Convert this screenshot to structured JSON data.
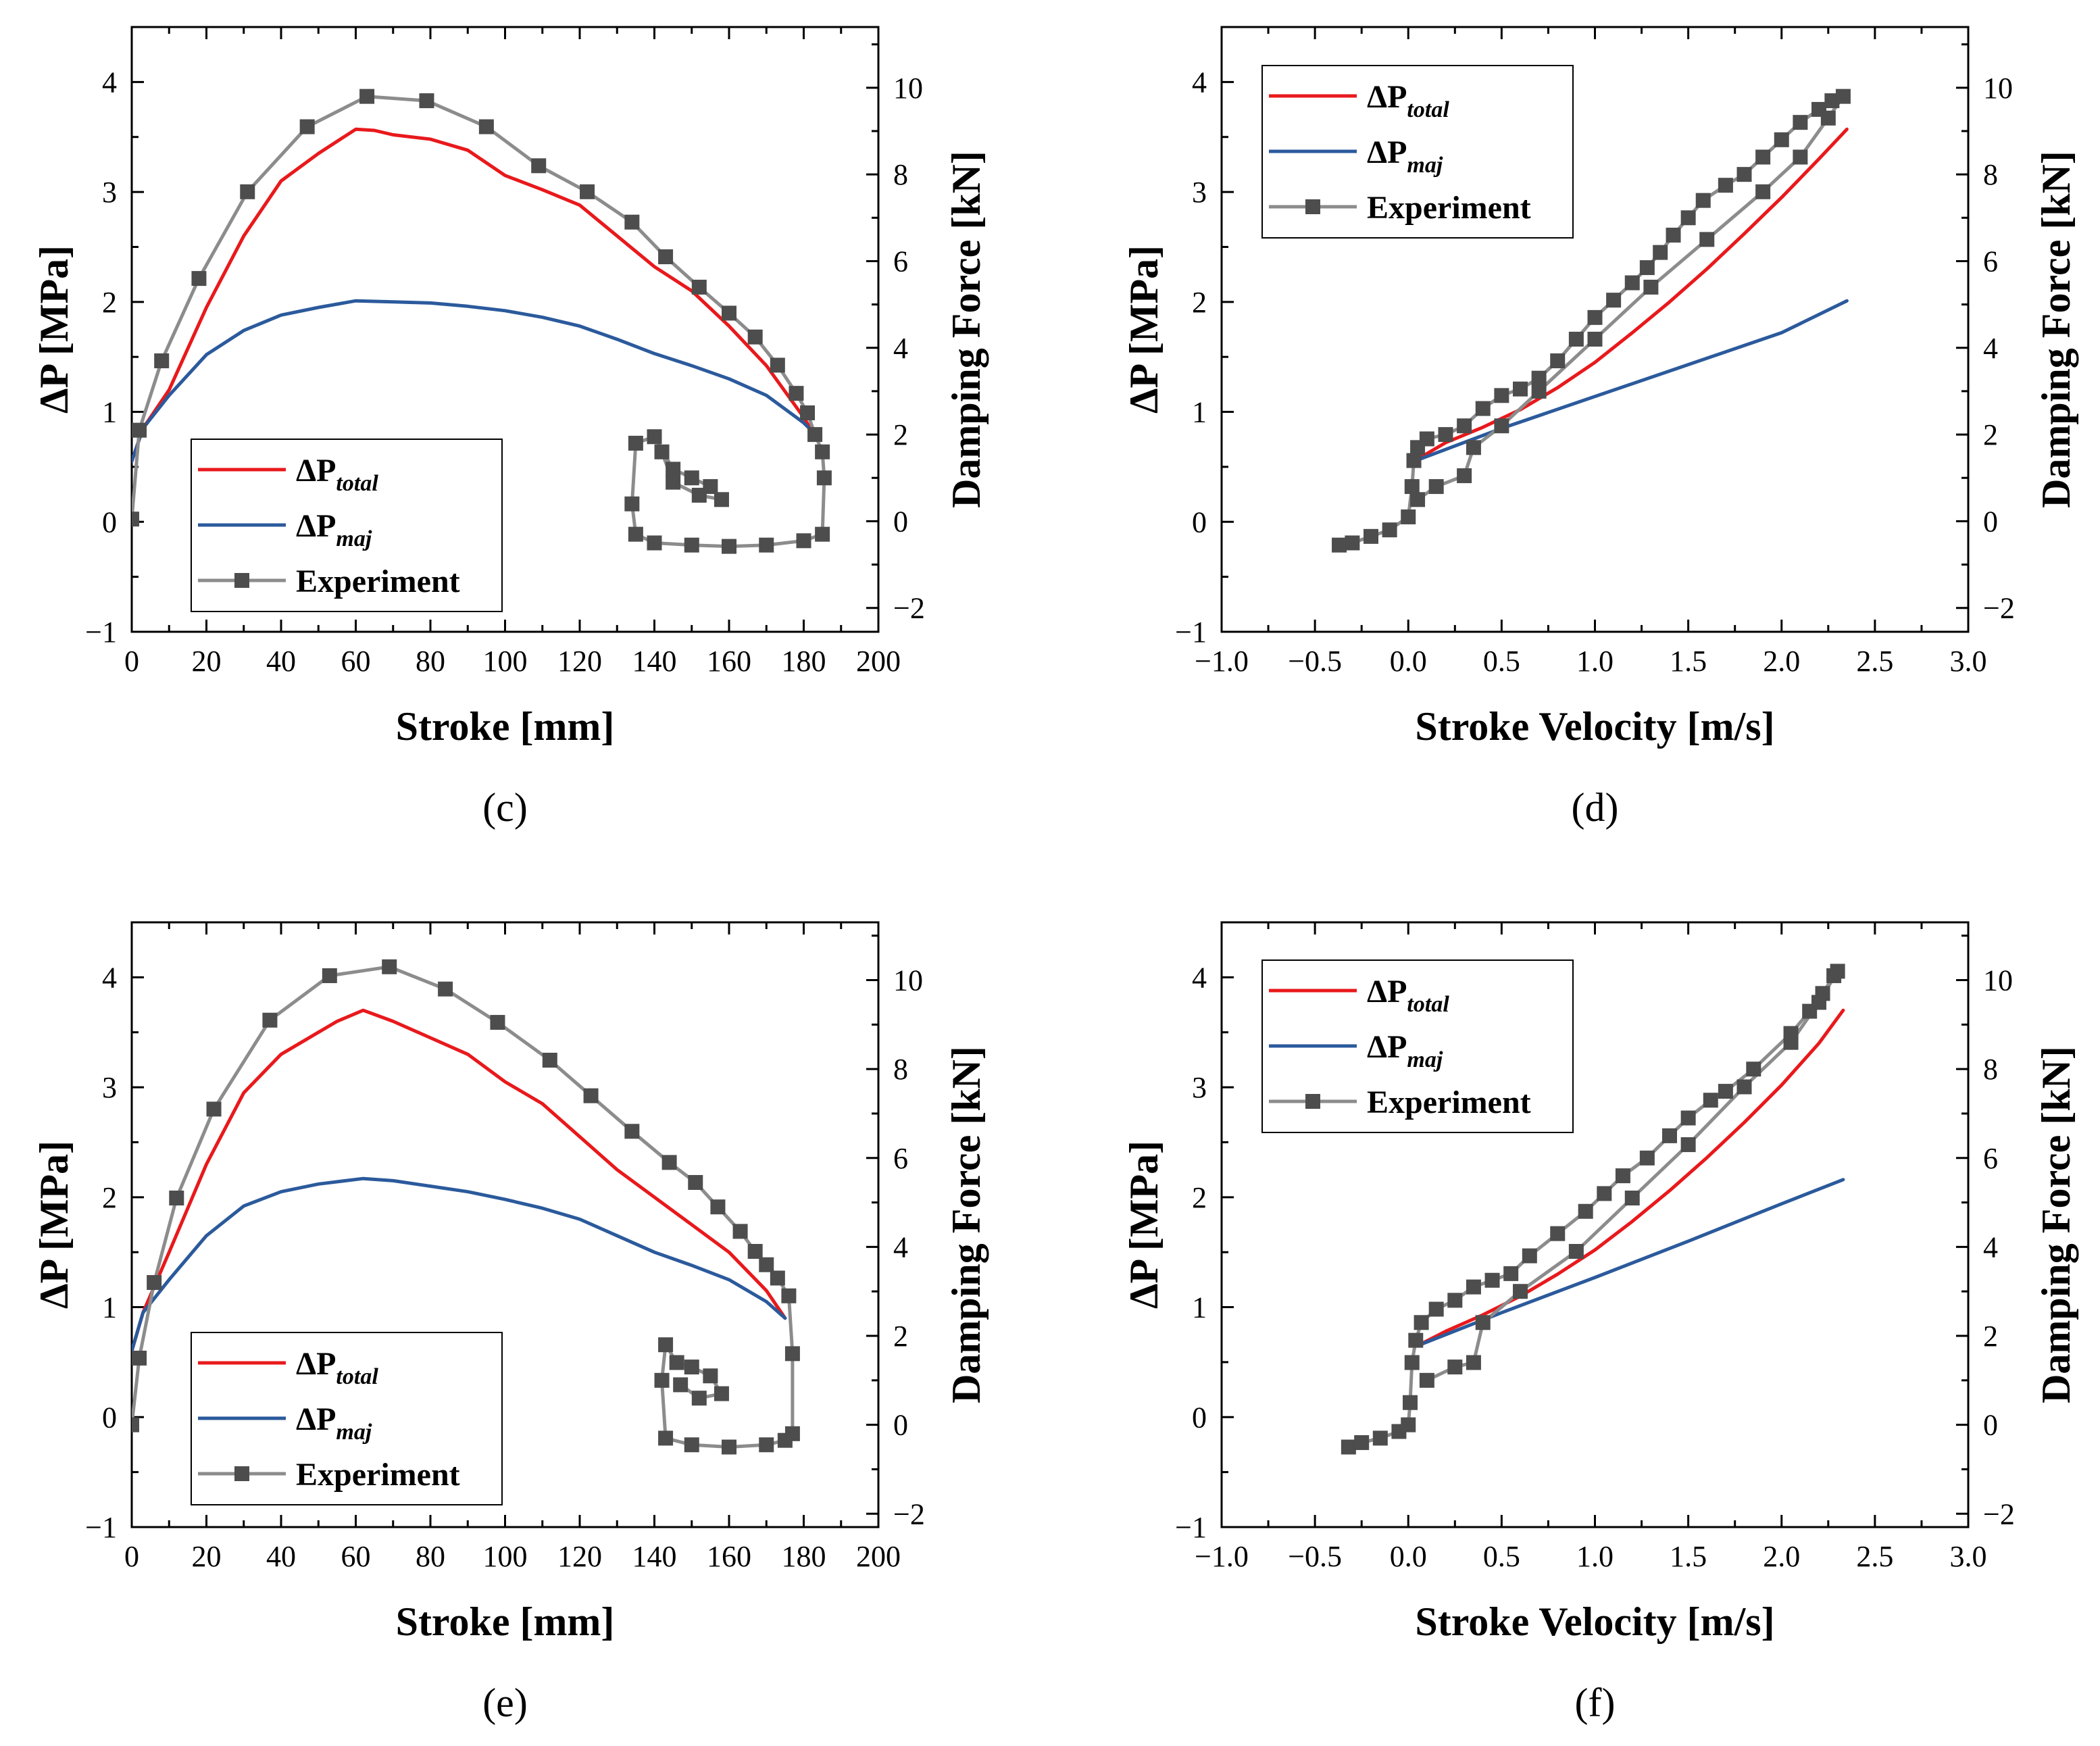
{
  "colors": {
    "total": "#e8191c",
    "maj": "#2b5a9c",
    "experiment_line": "#8c8c8c",
    "experiment_marker": "#4d4d4d"
  },
  "legend": {
    "total_main": "ΔP",
    "total_sub": "total",
    "maj_main": "ΔP",
    "maj_sub": "maj",
    "experiment": "Experiment"
  },
  "chart_data": [
    {
      "panel_label": "(c)",
      "type": "line",
      "xlabel": "Stroke [mm]",
      "ylabel": "ΔP [MPa]",
      "y2label": "Damping Force [kN]",
      "xlim": [
        0,
        200
      ],
      "ylim": [
        -1,
        4.5
      ],
      "y2lim": [
        -2.55,
        11.4
      ],
      "xticks": [
        0,
        20,
        40,
        60,
        80,
        100,
        120,
        140,
        160,
        180,
        200
      ],
      "yticks": [
        -1,
        0,
        1,
        2,
        3,
        4
      ],
      "y2ticks": [
        -2,
        0,
        2,
        4,
        6,
        8,
        10
      ],
      "legend_position": "lower-left",
      "series": [
        {
          "name": "ΔPtotal",
          "key": "total",
          "axis": "left",
          "x": [
            0,
            3,
            10,
            20,
            30,
            40,
            50,
            60,
            65,
            70,
            80,
            90,
            100,
            110,
            120,
            130,
            140,
            150,
            160,
            170,
            180,
            183
          ],
          "y": [
            0.55,
            0.85,
            1.2,
            1.95,
            2.6,
            3.1,
            3.35,
            3.57,
            3.56,
            3.52,
            3.48,
            3.38,
            3.15,
            3.02,
            2.88,
            2.6,
            2.32,
            2.1,
            1.78,
            1.42,
            0.95,
            0.78
          ]
        },
        {
          "name": "ΔPmaj",
          "key": "maj",
          "axis": "left",
          "x": [
            0,
            3,
            10,
            20,
            30,
            40,
            50,
            60,
            70,
            80,
            90,
            100,
            110,
            120,
            130,
            140,
            150,
            160,
            170,
            180,
            183
          ],
          "y": [
            0.55,
            0.85,
            1.15,
            1.52,
            1.74,
            1.88,
            1.95,
            2.01,
            2.0,
            1.99,
            1.96,
            1.92,
            1.86,
            1.78,
            1.66,
            1.53,
            1.42,
            1.3,
            1.15,
            0.9,
            0.8
          ]
        },
        {
          "name": "Experiment",
          "key": "experiment",
          "axis": "right",
          "x": [
            0,
            2,
            8,
            18,
            31,
            47,
            63,
            79,
            95,
            109,
            122,
            134,
            143,
            152,
            160,
            167,
            173,
            178,
            181,
            183,
            185,
            185.5,
            185,
            180,
            170,
            160,
            150,
            140,
            135,
            134,
            135,
            140,
            145,
            150,
            155,
            158,
            152,
            145,
            142
          ],
          "y": [
            0.05,
            2.1,
            3.7,
            5.6,
            7.6,
            9.1,
            9.8,
            9.7,
            9.1,
            8.2,
            7.6,
            6.9,
            6.1,
            5.4,
            4.8,
            4.25,
            3.6,
            2.95,
            2.5,
            2.0,
            1.6,
            1.0,
            -0.3,
            -0.45,
            -0.55,
            -0.58,
            -0.55,
            -0.5,
            -0.3,
            0.4,
            1.8,
            1.95,
            1.2,
            1.0,
            0.8,
            0.5,
            0.6,
            0.9,
            1.6
          ]
        }
      ]
    },
    {
      "panel_label": "(d)",
      "type": "line",
      "xlabel": "Stroke Velocity [m/s]",
      "ylabel": "ΔP [MPa]",
      "y2label": "Damping Force [kN]",
      "xlim": [
        -1.0,
        3.0
      ],
      "ylim": [
        -1,
        4.5
      ],
      "y2lim": [
        -2.55,
        11.4
      ],
      "xticks": [
        -1.0,
        -0.5,
        0.0,
        0.5,
        1.0,
        1.5,
        2.0,
        2.5,
        3.0
      ],
      "yticks": [
        -1,
        0,
        1,
        2,
        3,
        4
      ],
      "y2ticks": [
        -2,
        0,
        2,
        4,
        6,
        8,
        10
      ],
      "legend_position": "top-left",
      "series": [
        {
          "name": "ΔPtotal",
          "key": "total",
          "axis": "left",
          "x": [
            0.03,
            0.2,
            0.4,
            0.6,
            0.8,
            1.0,
            1.2,
            1.4,
            1.6,
            1.8,
            2.0,
            2.2,
            2.35
          ],
          "y": [
            0.55,
            0.72,
            0.86,
            1.02,
            1.22,
            1.45,
            1.72,
            2.0,
            2.3,
            2.62,
            2.95,
            3.3,
            3.57
          ]
        },
        {
          "name": "ΔPmaj",
          "key": "maj",
          "axis": "left",
          "x": [
            0.03,
            0.5,
            1.0,
            1.5,
            2.0,
            2.35
          ],
          "y": [
            0.55,
            0.85,
            1.14,
            1.43,
            1.72,
            2.01
          ]
        },
        {
          "name": "Experiment",
          "key": "experiment",
          "axis": "right",
          "x": [
            -0.37,
            -0.3,
            -0.2,
            -0.1,
            0.0,
            0.02,
            0.03,
            0.05,
            0.1,
            0.2,
            0.3,
            0.4,
            0.5,
            0.6,
            0.7,
            0.8,
            0.9,
            1.0,
            1.1,
            1.2,
            1.28,
            1.35,
            1.42,
            1.5,
            1.58,
            1.7,
            1.8,
            1.9,
            2.0,
            2.1,
            2.2,
            2.27,
            2.33,
            2.25,
            2.1,
            1.9,
            1.6,
            1.3,
            1.0,
            0.7,
            0.5,
            0.35,
            0.3,
            0.15,
            0.05
          ],
          "y": [
            -0.55,
            -0.5,
            -0.35,
            -0.2,
            0.1,
            0.8,
            1.4,
            1.7,
            1.9,
            2.0,
            2.2,
            2.6,
            2.9,
            3.05,
            3.3,
            3.7,
            4.2,
            4.7,
            5.1,
            5.5,
            5.85,
            6.2,
            6.6,
            7.0,
            7.4,
            7.75,
            8.0,
            8.4,
            8.8,
            9.2,
            9.5,
            9.7,
            9.8,
            9.3,
            8.4,
            7.6,
            6.5,
            5.4,
            4.2,
            3.0,
            2.2,
            1.7,
            1.05,
            0.8,
            0.5
          ]
        }
      ]
    },
    {
      "panel_label": "(e)",
      "type": "line",
      "xlabel": "Stroke [mm]",
      "ylabel": "ΔP [MPa]",
      "y2label": "Damping Force [kN]",
      "xlim": [
        0,
        200
      ],
      "ylim": [
        -1,
        4.5
      ],
      "y2lim": [
        -2.3,
        11.3
      ],
      "xticks": [
        0,
        20,
        40,
        60,
        80,
        100,
        120,
        140,
        160,
        180,
        200
      ],
      "yticks": [
        -1,
        0,
        1,
        2,
        3,
        4
      ],
      "y2ticks": [
        -2,
        0,
        2,
        4,
        6,
        8,
        10
      ],
      "legend_position": "lower-left",
      "series": [
        {
          "name": "ΔPtotal",
          "key": "total",
          "axis": "left",
          "x": [
            0,
            3,
            10,
            20,
            30,
            40,
            50,
            55,
            62,
            70,
            80,
            90,
            100,
            110,
            120,
            130,
            140,
            150,
            160,
            170,
            175
          ],
          "y": [
            0.6,
            0.95,
            1.5,
            2.3,
            2.95,
            3.3,
            3.5,
            3.6,
            3.7,
            3.6,
            3.45,
            3.3,
            3.05,
            2.85,
            2.55,
            2.25,
            2.0,
            1.75,
            1.5,
            1.15,
            0.9
          ]
        },
        {
          "name": "ΔPmaj",
          "key": "maj",
          "axis": "left",
          "x": [
            0,
            3,
            10,
            20,
            30,
            40,
            50,
            62,
            70,
            80,
            90,
            100,
            110,
            120,
            130,
            140,
            150,
            160,
            170,
            175
          ],
          "y": [
            0.6,
            0.95,
            1.25,
            1.65,
            1.92,
            2.05,
            2.12,
            2.17,
            2.15,
            2.1,
            2.05,
            1.98,
            1.9,
            1.8,
            1.65,
            1.5,
            1.38,
            1.25,
            1.05,
            0.9
          ]
        },
        {
          "name": "Experiment",
          "key": "experiment",
          "axis": "right",
          "x": [
            0,
            2,
            6,
            12,
            22,
            37,
            53,
            69,
            84,
            98,
            112,
            123,
            134,
            144,
            151,
            157,
            163,
            167,
            170,
            173,
            176,
            177,
            177,
            175,
            170,
            160,
            150,
            143,
            142,
            143,
            146,
            150,
            155,
            158,
            152,
            147
          ],
          "y": [
            0.0,
            1.5,
            3.2,
            5.1,
            7.1,
            9.1,
            10.1,
            10.3,
            9.8,
            9.05,
            8.2,
            7.4,
            6.6,
            5.9,
            5.45,
            4.9,
            4.35,
            3.9,
            3.6,
            3.3,
            2.9,
            1.6,
            -0.2,
            -0.35,
            -0.45,
            -0.5,
            -0.45,
            -0.3,
            1.0,
            1.8,
            1.4,
            1.3,
            1.1,
            0.7,
            0.6,
            0.9
          ]
        }
      ]
    },
    {
      "panel_label": "(f)",
      "type": "line",
      "xlabel": "Stroke Velocity [m/s]",
      "ylabel": "ΔP [MPa]",
      "y2label": "Damping Force [kN]",
      "xlim": [
        -1.0,
        3.0
      ],
      "ylim": [
        -1,
        4.5
      ],
      "y2lim": [
        -2.3,
        11.3
      ],
      "xticks": [
        -1.0,
        -0.5,
        0.0,
        0.5,
        1.0,
        1.5,
        2.0,
        2.5,
        3.0
      ],
      "yticks": [
        -1,
        0,
        1,
        2,
        3,
        4
      ],
      "y2ticks": [
        -2,
        0,
        2,
        4,
        6,
        8,
        10
      ],
      "legend_position": "top-left",
      "series": [
        {
          "name": "ΔPtotal",
          "key": "total",
          "axis": "left",
          "x": [
            0.05,
            0.2,
            0.4,
            0.6,
            0.8,
            1.0,
            1.2,
            1.4,
            1.6,
            1.8,
            2.0,
            2.2,
            2.33
          ],
          "y": [
            0.65,
            0.78,
            0.93,
            1.1,
            1.3,
            1.52,
            1.78,
            2.06,
            2.36,
            2.68,
            3.02,
            3.4,
            3.7
          ]
        },
        {
          "name": "ΔPmaj",
          "key": "maj",
          "axis": "left",
          "x": [
            0.05,
            0.5,
            1.0,
            1.5,
            2.0,
            2.33
          ],
          "y": [
            0.65,
            0.95,
            1.27,
            1.6,
            1.94,
            2.16
          ]
        },
        {
          "name": "Experiment",
          "key": "experiment",
          "axis": "right",
          "x": [
            -0.32,
            -0.25,
            -0.15,
            -0.05,
            0.0,
            0.01,
            0.02,
            0.04,
            0.07,
            0.15,
            0.25,
            0.35,
            0.45,
            0.55,
            0.65,
            0.8,
            0.95,
            1.05,
            1.15,
            1.28,
            1.4,
            1.5,
            1.62,
            1.7,
            1.85,
            2.05,
            2.15,
            2.22,
            2.28,
            2.3,
            2.2,
            2.05,
            1.8,
            1.5,
            1.2,
            0.9,
            0.6,
            0.4,
            0.35,
            0.25,
            0.1
          ],
          "y": [
            -0.5,
            -0.4,
            -0.3,
            -0.15,
            0.0,
            0.5,
            1.4,
            1.9,
            2.3,
            2.6,
            2.8,
            3.1,
            3.25,
            3.4,
            3.8,
            4.3,
            4.8,
            5.2,
            5.6,
            6.0,
            6.5,
            6.9,
            7.3,
            7.5,
            8.0,
            8.8,
            9.3,
            9.7,
            10.1,
            10.2,
            9.5,
            8.6,
            7.6,
            6.3,
            5.1,
            3.9,
            3.0,
            2.3,
            1.4,
            1.3,
            1.0
          ]
        }
      ]
    }
  ]
}
